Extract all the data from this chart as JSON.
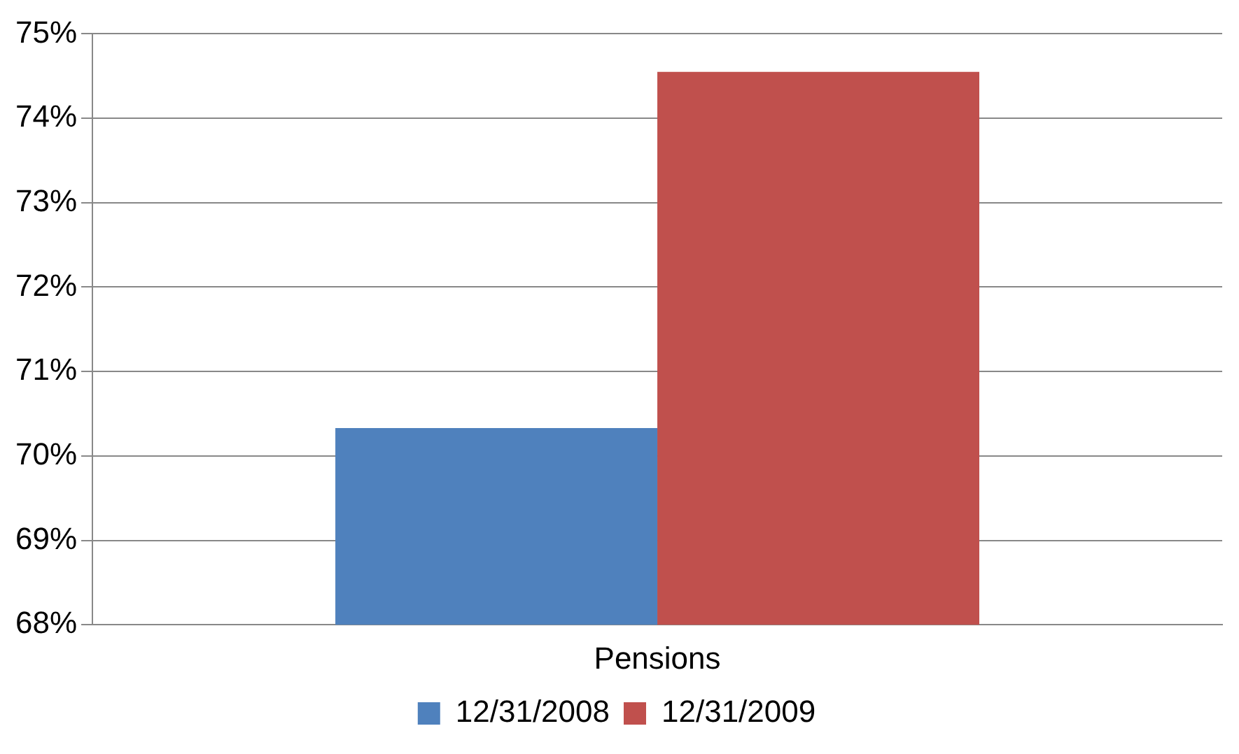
{
  "chart_data": {
    "type": "bar",
    "categories": [
      "Pensions"
    ],
    "series": [
      {
        "name": "12/31/2008",
        "color": "#4f81bd",
        "values": [
          70.33
        ]
      },
      {
        "name": "12/31/2009",
        "color": "#c0504d",
        "values": [
          74.55
        ]
      }
    ],
    "ylim": [
      68,
      75
    ],
    "yticks": [
      {
        "value": 68,
        "label": "68%"
      },
      {
        "value": 69,
        "label": "69%"
      },
      {
        "value": 70,
        "label": "70%"
      },
      {
        "value": 71,
        "label": "71%"
      },
      {
        "value": 72,
        "label": "72%"
      },
      {
        "value": 73,
        "label": "73%"
      },
      {
        "value": 74,
        "label": "74%"
      },
      {
        "value": 75,
        "label": "75%"
      }
    ],
    "grid": "y",
    "legend": "bottom"
  }
}
